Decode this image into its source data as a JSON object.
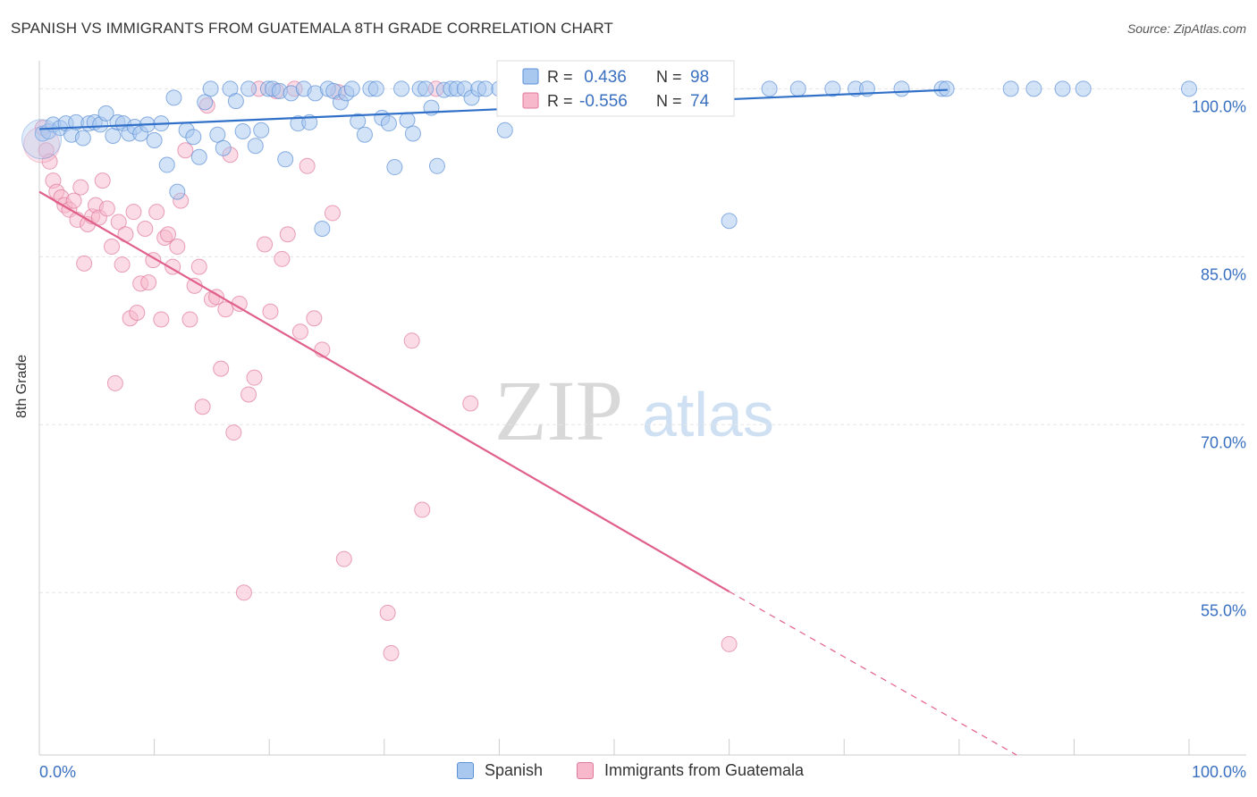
{
  "title": "SPANISH VS IMMIGRANTS FROM GUATEMALA 8TH GRADE CORRELATION CHART",
  "source": "Source: ZipAtlas.com",
  "watermark": {
    "zip": "ZIP",
    "atlas": "atlas"
  },
  "colors": {
    "blue_fill": "#a8c8f0",
    "blue_stroke": "#5b8fd6",
    "blue_line": "#3070c8",
    "pink_fill": "#f7b8cc",
    "pink_stroke": "#e07a9c",
    "pink_line": "#e0608a",
    "axis_text": "#3a70c0",
    "grid": "#e6e6e6"
  },
  "legend_top": [
    {
      "r_label": "R =",
      "r_value": " 0.436",
      "n_label": "N =",
      "n_value": "98"
    },
    {
      "r_label": "R =",
      "r_value": "-0.556",
      "n_label": "N =",
      "n_value": "74"
    }
  ],
  "legend_bottom": [
    {
      "label": "Spanish"
    },
    {
      "label": "Immigrants from Guatemala"
    }
  ],
  "chart_data": {
    "type": "scatter",
    "title": "SPANISH VS IMMIGRANTS FROM GUATEMALA 8TH GRADE CORRELATION CHART",
    "xlabel": "",
    "ylabel": "8th Grade",
    "xlim": [
      0,
      100
    ],
    "ylim": [
      40.5,
      102.5
    ],
    "x_tick_labels": [
      "0.0%",
      "100.0%"
    ],
    "y_ticks": [
      55,
      70,
      85,
      100
    ],
    "y_tick_labels": [
      "55.0%",
      "70.0%",
      "85.0%",
      "100.0%"
    ],
    "grid": true,
    "series": [
      {
        "name": "Spanish",
        "R": 0.436,
        "N": 98,
        "trend": {
          "x0": 0,
          "y0": 96.4,
          "x1": 79,
          "y1": 99.9,
          "dashed_to": null
        },
        "points": [
          [
            0.3,
            96.0
          ],
          [
            0.8,
            96.2
          ],
          [
            1.2,
            96.8
          ],
          [
            1.8,
            96.5
          ],
          [
            2.3,
            96.9
          ],
          [
            2.8,
            95.9
          ],
          [
            3.2,
            97.0
          ],
          [
            3.8,
            95.6
          ],
          [
            4.3,
            96.9
          ],
          [
            4.8,
            97.0
          ],
          [
            5.3,
            96.8
          ],
          [
            5.8,
            97.8
          ],
          [
            6.4,
            95.8
          ],
          [
            6.8,
            97.0
          ],
          [
            7.3,
            96.9
          ],
          [
            7.8,
            96.0
          ],
          [
            8.3,
            96.6
          ],
          [
            8.8,
            96.0
          ],
          [
            9.4,
            96.8
          ],
          [
            10.0,
            95.4
          ],
          [
            10.6,
            96.9
          ],
          [
            11.1,
            93.2
          ],
          [
            11.7,
            99.2
          ],
          [
            12.0,
            90.8
          ],
          [
            12.8,
            96.3
          ],
          [
            13.4,
            95.7
          ],
          [
            13.9,
            93.9
          ],
          [
            14.4,
            98.8
          ],
          [
            14.9,
            100.0
          ],
          [
            15.5,
            95.9
          ],
          [
            16.0,
            94.7
          ],
          [
            16.6,
            100.0
          ],
          [
            17.1,
            98.9
          ],
          [
            17.7,
            96.2
          ],
          [
            18.2,
            100.0
          ],
          [
            18.8,
            94.9
          ],
          [
            19.3,
            96.3
          ],
          [
            19.9,
            100.0
          ],
          [
            20.3,
            100.0
          ],
          [
            20.9,
            99.8
          ],
          [
            21.4,
            93.7
          ],
          [
            21.9,
            99.6
          ],
          [
            22.5,
            96.9
          ],
          [
            23.0,
            100.0
          ],
          [
            23.5,
            97.0
          ],
          [
            24.0,
            99.6
          ],
          [
            24.6,
            87.5
          ],
          [
            25.1,
            100.0
          ],
          [
            25.6,
            99.8
          ],
          [
            26.2,
            98.8
          ],
          [
            26.7,
            99.6
          ],
          [
            27.2,
            100.0
          ],
          [
            27.7,
            97.1
          ],
          [
            28.3,
            95.9
          ],
          [
            28.8,
            100.0
          ],
          [
            29.3,
            100.0
          ],
          [
            29.8,
            97.4
          ],
          [
            30.4,
            96.9
          ],
          [
            30.9,
            93.0
          ],
          [
            31.5,
            100.0
          ],
          [
            32.0,
            97.2
          ],
          [
            32.5,
            96.0
          ],
          [
            33.1,
            100.0
          ],
          [
            33.6,
            100.0
          ],
          [
            34.1,
            98.3
          ],
          [
            34.6,
            93.1
          ],
          [
            35.2,
            99.9
          ],
          [
            35.8,
            100.0
          ],
          [
            36.3,
            100.0
          ],
          [
            37.0,
            100.0
          ],
          [
            37.6,
            99.2
          ],
          [
            38.2,
            100.0
          ],
          [
            38.8,
            100.0
          ],
          [
            40.0,
            100.0
          ],
          [
            40.5,
            96.3
          ],
          [
            42.0,
            100.0
          ],
          [
            43.5,
            100.0
          ],
          [
            45.0,
            100.0
          ],
          [
            47.0,
            100.0
          ],
          [
            48.5,
            100.0
          ],
          [
            50.0,
            100.0
          ],
          [
            51.0,
            100.0
          ],
          [
            55.5,
            100.0
          ],
          [
            56.0,
            100.0
          ],
          [
            56.8,
            100.0
          ],
          [
            60.0,
            88.2
          ],
          [
            63.5,
            100.0
          ],
          [
            66.0,
            100.0
          ],
          [
            69.0,
            100.0
          ],
          [
            71.0,
            100.0
          ],
          [
            72.0,
            100.0
          ],
          [
            75.0,
            100.0
          ],
          [
            78.5,
            100.0
          ],
          [
            78.9,
            100.0
          ],
          [
            84.5,
            100.0
          ],
          [
            86.5,
            100.0
          ],
          [
            89.0,
            100.0
          ],
          [
            90.8,
            100.0
          ],
          [
            100.0,
            100.0
          ]
        ]
      },
      {
        "name": "Immigrants from Guatemala",
        "R": -0.556,
        "N": 74,
        "trend": {
          "x0": 0,
          "y0": 90.8,
          "x1": 60,
          "y1": 55.1,
          "dashed_to": [
            85.0,
            40.5
          ]
        },
        "points": [
          [
            0.3,
            96.5
          ],
          [
            0.6,
            94.5
          ],
          [
            0.9,
            93.5
          ],
          [
            1.2,
            91.8
          ],
          [
            1.5,
            90.8
          ],
          [
            1.9,
            90.3
          ],
          [
            2.2,
            89.6
          ],
          [
            2.6,
            89.2
          ],
          [
            3.0,
            90.0
          ],
          [
            3.3,
            88.3
          ],
          [
            3.6,
            91.2
          ],
          [
            3.9,
            84.4
          ],
          [
            4.2,
            87.9
          ],
          [
            4.6,
            88.6
          ],
          [
            4.9,
            89.6
          ],
          [
            5.2,
            88.5
          ],
          [
            5.5,
            91.8
          ],
          [
            5.9,
            89.3
          ],
          [
            6.3,
            85.9
          ],
          [
            6.6,
            73.7
          ],
          [
            6.9,
            88.1
          ],
          [
            7.2,
            84.3
          ],
          [
            7.5,
            87.0
          ],
          [
            7.9,
            79.5
          ],
          [
            8.2,
            89.0
          ],
          [
            8.5,
            80.0
          ],
          [
            8.8,
            82.6
          ],
          [
            9.2,
            87.5
          ],
          [
            9.5,
            82.7
          ],
          [
            9.9,
            84.7
          ],
          [
            10.2,
            89.0
          ],
          [
            10.6,
            79.4
          ],
          [
            10.9,
            86.7
          ],
          [
            11.2,
            87.0
          ],
          [
            11.6,
            84.1
          ],
          [
            12.0,
            85.9
          ],
          [
            12.3,
            90.0
          ],
          [
            12.7,
            94.5
          ],
          [
            13.1,
            79.4
          ],
          [
            13.5,
            82.4
          ],
          [
            13.9,
            84.1
          ],
          [
            14.2,
            71.6
          ],
          [
            14.6,
            98.5
          ],
          [
            15.0,
            81.2
          ],
          [
            15.4,
            81.4
          ],
          [
            15.8,
            75.0
          ],
          [
            16.2,
            80.3
          ],
          [
            16.6,
            94.1
          ],
          [
            16.9,
            69.3
          ],
          [
            17.4,
            80.8
          ],
          [
            17.8,
            55.0
          ],
          [
            18.2,
            72.7
          ],
          [
            18.7,
            74.2
          ],
          [
            19.1,
            100.0
          ],
          [
            19.6,
            86.1
          ],
          [
            20.1,
            80.1
          ],
          [
            20.6,
            99.8
          ],
          [
            21.1,
            84.8
          ],
          [
            21.6,
            87.0
          ],
          [
            22.2,
            100.0
          ],
          [
            22.7,
            78.3
          ],
          [
            23.3,
            93.1
          ],
          [
            23.9,
            79.5
          ],
          [
            24.6,
            76.7
          ],
          [
            25.5,
            88.9
          ],
          [
            26.0,
            99.7
          ],
          [
            26.5,
            58.0
          ],
          [
            30.3,
            53.2
          ],
          [
            30.6,
            49.6
          ],
          [
            32.4,
            77.5
          ],
          [
            33.3,
            62.4
          ],
          [
            34.5,
            100.0
          ],
          [
            37.5,
            71.9
          ],
          [
            60.0,
            50.4
          ]
        ]
      }
    ]
  }
}
